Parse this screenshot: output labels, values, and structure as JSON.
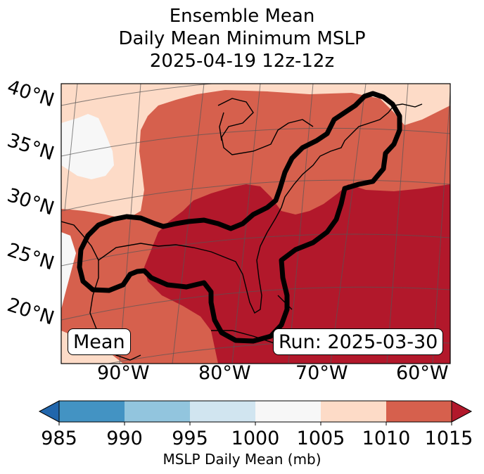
{
  "title": {
    "line1": "Ensemble Mean",
    "line2": "Daily Mean Minimum MSLP",
    "line3": "2025-04-19 12z-12z"
  },
  "map": {
    "lat_labels": [
      "40°N",
      "35°N",
      "30°N",
      "25°N",
      "20°N"
    ],
    "lon_labels": [
      "90°W",
      "80°W",
      "70°W",
      "60°W"
    ],
    "mean_box": "Mean",
    "run_box": "Run: 2025-03-30",
    "colors": {
      "c985": "#2166ac",
      "c990": "#4393c3",
      "c995": "#92c5de",
      "c1000": "#d1e5f0",
      "c1005": "#f7f7f7",
      "c1010": "#fddbc7",
      "c1015": "#d6604d",
      "c_high": "#b2182b"
    }
  },
  "colorbar": {
    "ticks": [
      "985",
      "990",
      "995",
      "1000",
      "1005",
      "1010",
      "1015"
    ],
    "label": "MSLP Daily Mean (mb)",
    "segment_colors": [
      "#4393c3",
      "#92c5de",
      "#d1e5f0",
      "#f7f7f7",
      "#fddbc7",
      "#d6604d"
    ],
    "under_color": "#2166ac",
    "over_color": "#b2182b"
  }
}
